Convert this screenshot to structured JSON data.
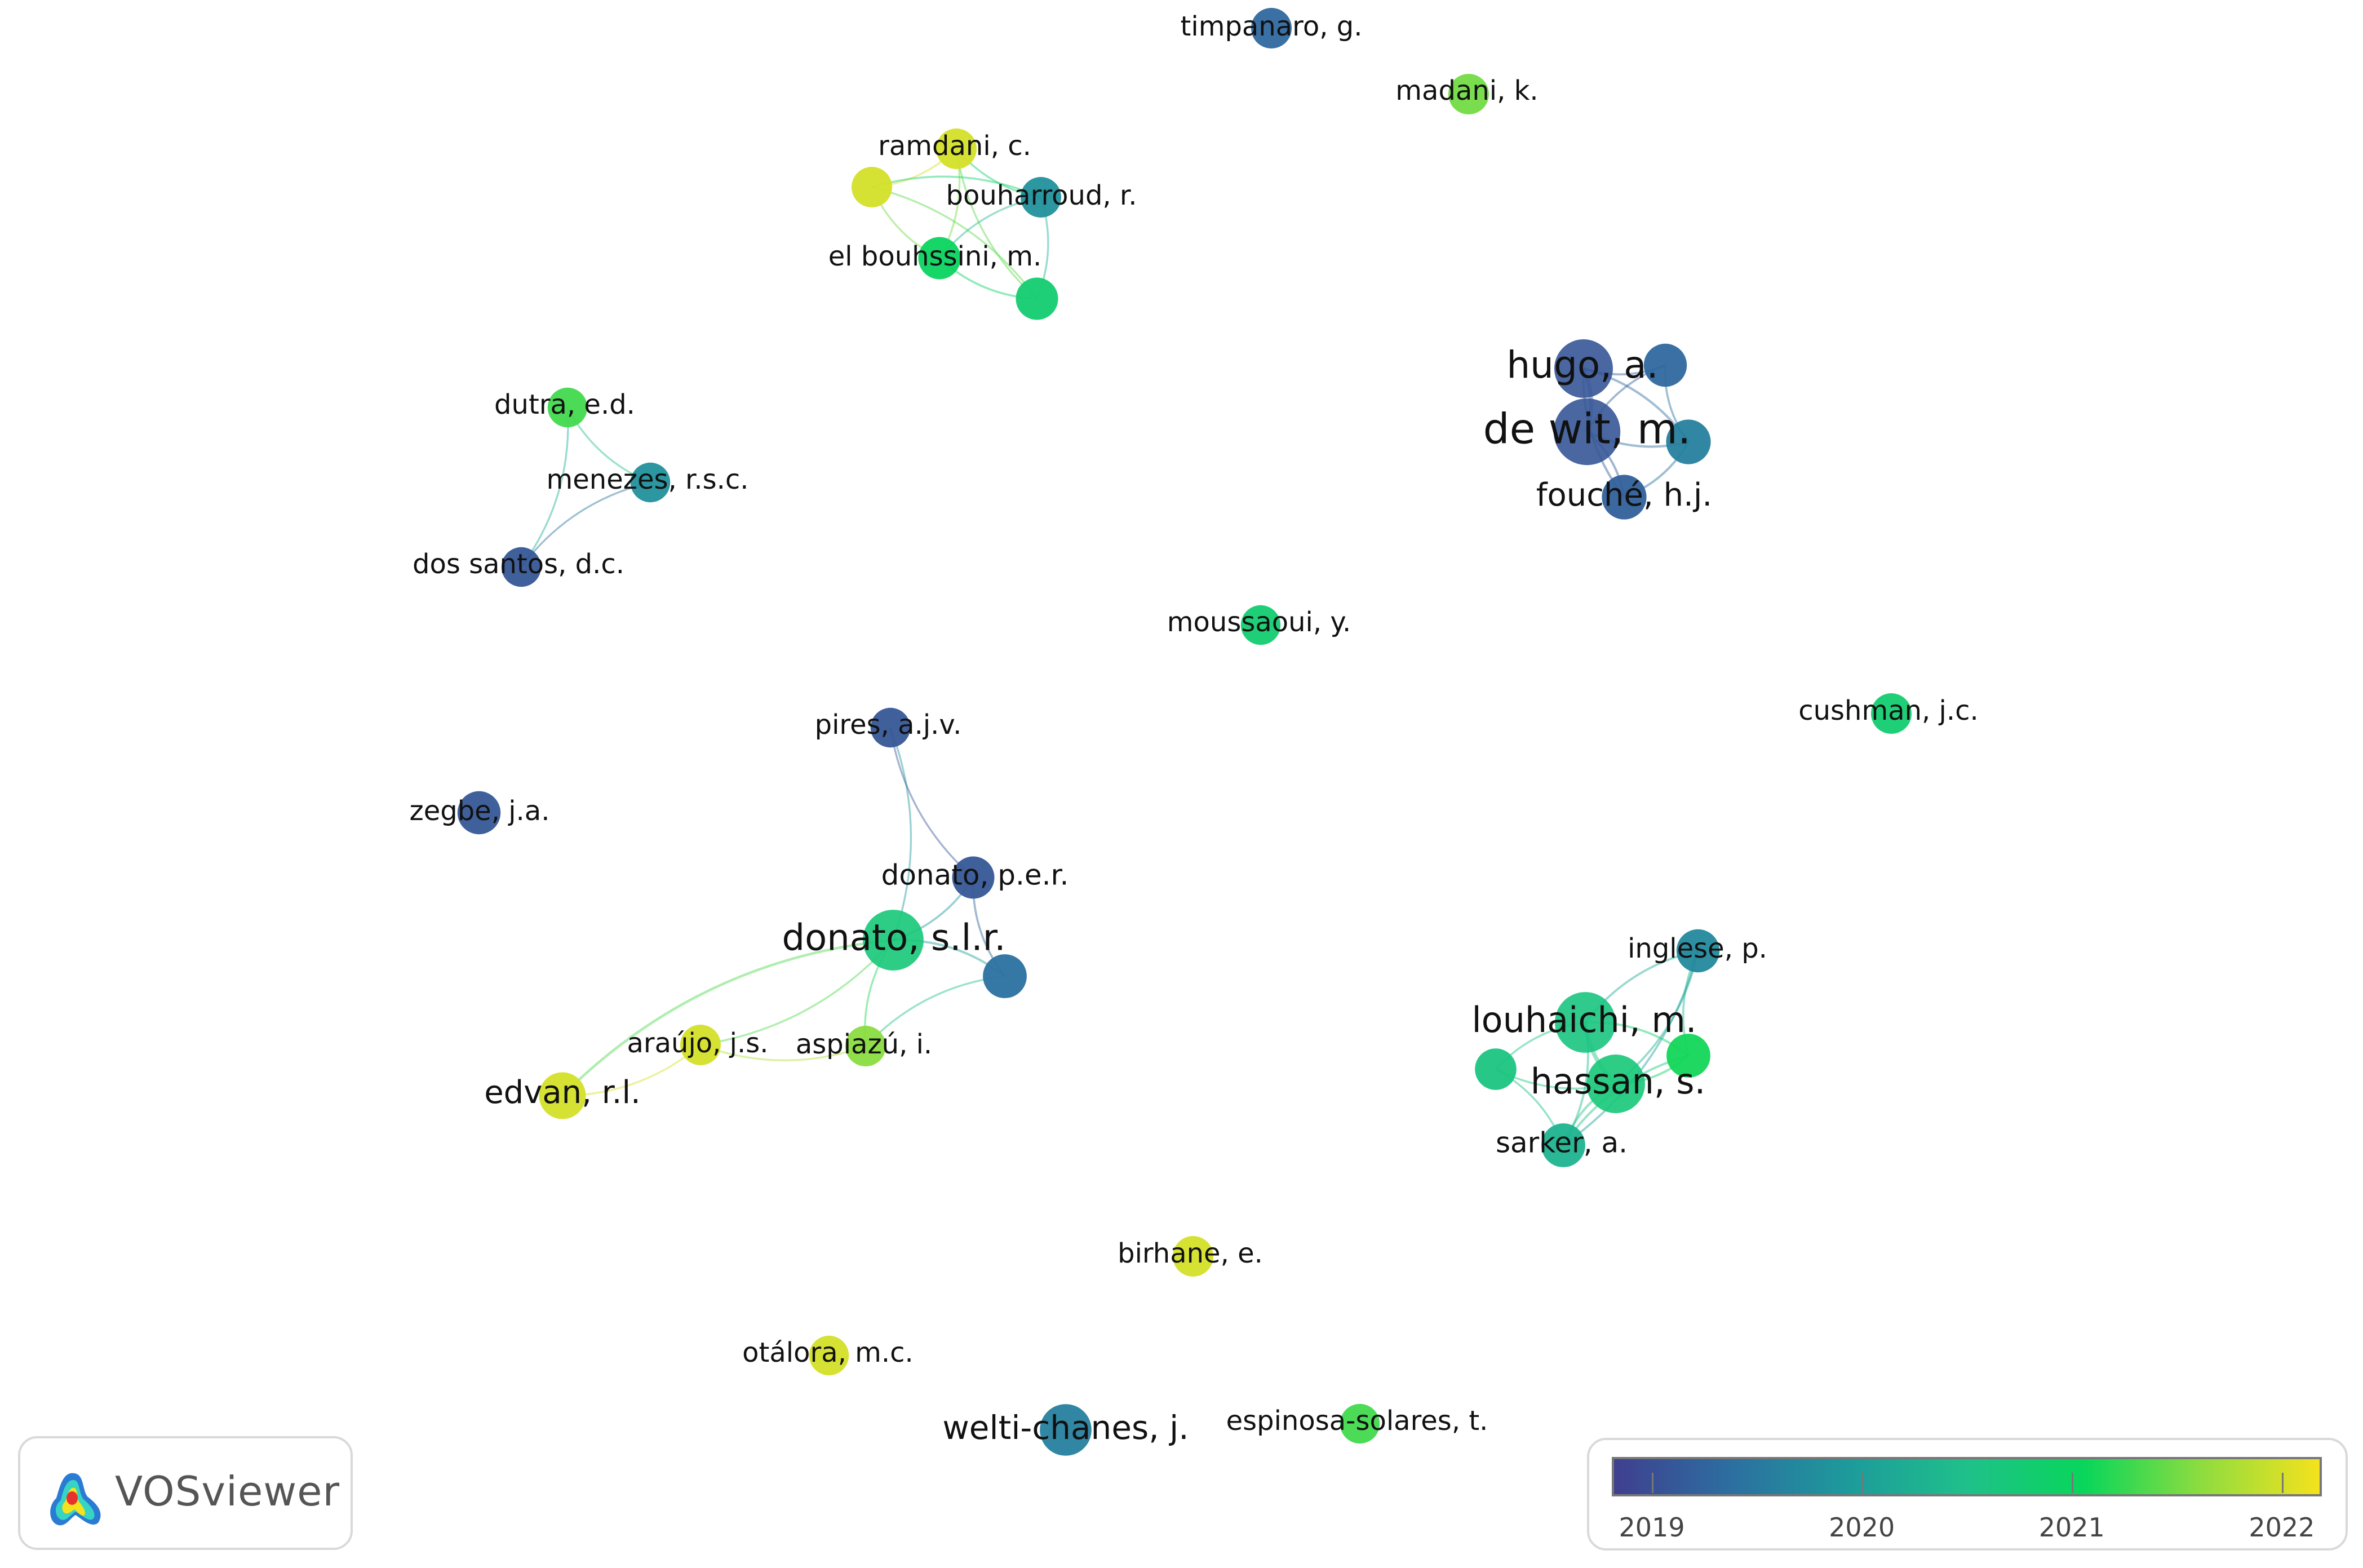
{
  "nodes": [
    {
      "id": "timpanaro",
      "label": "timpanaro, g.",
      "weight": 1,
      "year": 2019.3
    },
    {
      "id": "madani",
      "label": "madani, k.",
      "weight": 1,
      "year": 2021.5
    },
    {
      "id": "ramdani",
      "label": "ramdani, c.",
      "weight": 1,
      "year": 2022.0
    },
    {
      "id": "yellow-unlabeled",
      "label": "",
      "weight": 1,
      "year": 2022.0
    },
    {
      "id": "bouharroud",
      "label": "bouharroud, r.",
      "weight": 1,
      "year": 2019.8
    },
    {
      "id": "el-bouhssini",
      "label": "el bouhssini, m.",
      "weight": 1.2,
      "year": 2021.0
    },
    {
      "id": "teal-unlabeled",
      "label": "",
      "weight": 1.2,
      "year": 2020.8
    },
    {
      "id": "hugo",
      "label": "hugo, a.",
      "weight": 4,
      "year": 2019.1
    },
    {
      "id": "de-wit",
      "label": "de wit, m.",
      "weight": 6,
      "year": 2019.1
    },
    {
      "id": "periwinkle-unlabeled",
      "label": "",
      "weight": 1.3,
      "year": 2019.3
    },
    {
      "id": "blue-unlabeled",
      "label": "",
      "weight": 1.5,
      "year": 2019.6
    },
    {
      "id": "fouche",
      "label": "fouché, h.j.",
      "weight": 1.5,
      "year": 2019.2
    },
    {
      "id": "dutra",
      "label": "dutra, e.d.",
      "weight": 0.9,
      "year": 2021.3
    },
    {
      "id": "menezes",
      "label": "menezes, r.s.c.",
      "weight": 0.9,
      "year": 2019.8
    },
    {
      "id": "dos-santos",
      "label": "dos santos, d.c.",
      "weight": 0.9,
      "year": 2019.1
    },
    {
      "id": "moussaoui",
      "label": "moussaoui, y.",
      "weight": 0.9,
      "year": 2020.8
    },
    {
      "id": "cushman",
      "label": "cushman, j.c.",
      "weight": 1,
      "year": 2020.8
    },
    {
      "id": "pires",
      "label": "pires, a.j.v.",
      "weight": 0.9,
      "year": 2019.1
    },
    {
      "id": "zegbe",
      "label": "zegbe, j.a.",
      "weight": 1.3,
      "year": 2019.1
    },
    {
      "id": "donato-per",
      "label": "donato, p.e.r.",
      "weight": 1.2,
      "year": 2019.1
    },
    {
      "id": "donato-slr",
      "label": "donato, s.l.r.",
      "weight": 4.5,
      "year": 2020.7
    },
    {
      "id": "slate-unlabeled",
      "label": "",
      "weight": 1.4,
      "year": 2019.4
    },
    {
      "id": "inglese",
      "label": "inglese, p.",
      "weight": 1.3,
      "year": 2019.7
    },
    {
      "id": "louhaichi",
      "label": "louhaichi, m.",
      "weight": 4.5,
      "year": 2020.6
    },
    {
      "id": "green-unlabeled",
      "label": "",
      "weight": 1.4,
      "year": 2021.1
    },
    {
      "id": "aqua-unlabeled",
      "label": "",
      "weight": 1.1,
      "year": 2020.6
    },
    {
      "id": "hassan",
      "label": "hassan, s.",
      "weight": 4,
      "year": 2020.7
    },
    {
      "id": "sarker",
      "label": "sarker, a.",
      "weight": 1.4,
      "year": 2020.3
    },
    {
      "id": "araujo",
      "label": "araújo, j.s.",
      "weight": 1,
      "year": 2022.0
    },
    {
      "id": "aspiazu",
      "label": "aspiazú, i.",
      "weight": 1,
      "year": 2021.6
    },
    {
      "id": "edvan",
      "label": "edvan, r.l.",
      "weight": 1.8,
      "year": 2022.0
    },
    {
      "id": "birhane",
      "label": "birhane, e.",
      "weight": 1,
      "year": 2022.0
    },
    {
      "id": "otalora",
      "label": "otálora, m.c.",
      "weight": 0.9,
      "year": 2022.0
    },
    {
      "id": "welti-chanes",
      "label": "welti-chanes, j.",
      "weight": 2.6,
      "year": 2019.6
    },
    {
      "id": "espinosa-solares",
      "label": "espinosa-solares, t.",
      "weight": 0.9,
      "year": 2021.3
    }
  ],
  "links": [
    [
      "ramdani",
      "yellow-unlabeled"
    ],
    [
      "ramdani",
      "bouharroud"
    ],
    [
      "ramdani",
      "el-bouhssini"
    ],
    [
      "ramdani",
      "teal-unlabeled"
    ],
    [
      "yellow-unlabeled",
      "bouharroud"
    ],
    [
      "yellow-unlabeled",
      "el-bouhssini"
    ],
    [
      "yellow-unlabeled",
      "teal-unlabeled"
    ],
    [
      "bouharroud",
      "el-bouhssini"
    ],
    [
      "bouharroud",
      "teal-unlabeled"
    ],
    [
      "el-bouhssini",
      "teal-unlabeled"
    ],
    [
      "hugo",
      "de-wit"
    ],
    [
      "hugo",
      "periwinkle-unlabeled"
    ],
    [
      "hugo",
      "blue-unlabeled"
    ],
    [
      "hugo",
      "fouche"
    ],
    [
      "de-wit",
      "periwinkle-unlabeled"
    ],
    [
      "de-wit",
      "blue-unlabeled"
    ],
    [
      "de-wit",
      "fouche"
    ],
    [
      "periwinkle-unlabeled",
      "blue-unlabeled"
    ],
    [
      "blue-unlabeled",
      "fouche"
    ],
    [
      "dutra",
      "menezes"
    ],
    [
      "dutra",
      "dos-santos"
    ],
    [
      "menezes",
      "dos-santos"
    ],
    [
      "pires",
      "donato-slr"
    ],
    [
      "pires",
      "donato-per"
    ],
    [
      "donato-per",
      "donato-slr"
    ],
    [
      "donato-per",
      "slate-unlabeled"
    ],
    [
      "donato-slr",
      "slate-unlabeled"
    ],
    [
      "donato-slr",
      "aspiazu"
    ],
    [
      "donato-slr",
      "araujo"
    ],
    [
      "slate-unlabeled",
      "aspiazu"
    ],
    [
      "araujo",
      "edvan"
    ],
    [
      "araujo",
      "aspiazu"
    ],
    [
      "edvan",
      "donato-slr"
    ],
    [
      "inglese",
      "louhaichi"
    ],
    [
      "inglese",
      "hassan"
    ],
    [
      "inglese",
      "green-unlabeled"
    ],
    [
      "inglese",
      "sarker"
    ],
    [
      "louhaichi",
      "hassan"
    ],
    [
      "louhaichi",
      "green-unlabeled"
    ],
    [
      "louhaichi",
      "aqua-unlabeled"
    ],
    [
      "louhaichi",
      "sarker"
    ],
    [
      "hassan",
      "green-unlabeled"
    ],
    [
      "hassan",
      "aqua-unlabeled"
    ],
    [
      "hassan",
      "sarker"
    ],
    [
      "aqua-unlabeled",
      "sarker"
    ],
    [
      "green-unlabeled",
      "sarker"
    ]
  ],
  "brand": {
    "name": "VOSviewer"
  },
  "legend": {
    "colors": [
      "#3f3f8f",
      "#2c6fa0",
      "#1d9b9b",
      "#1fc08a",
      "#08d65a",
      "#8fdc3f",
      "#f4e21d"
    ],
    "ticks": [
      "2019",
      "2020",
      "2021",
      "2022"
    ],
    "min_year": 2018.82,
    "max_year": 2022.18
  }
}
